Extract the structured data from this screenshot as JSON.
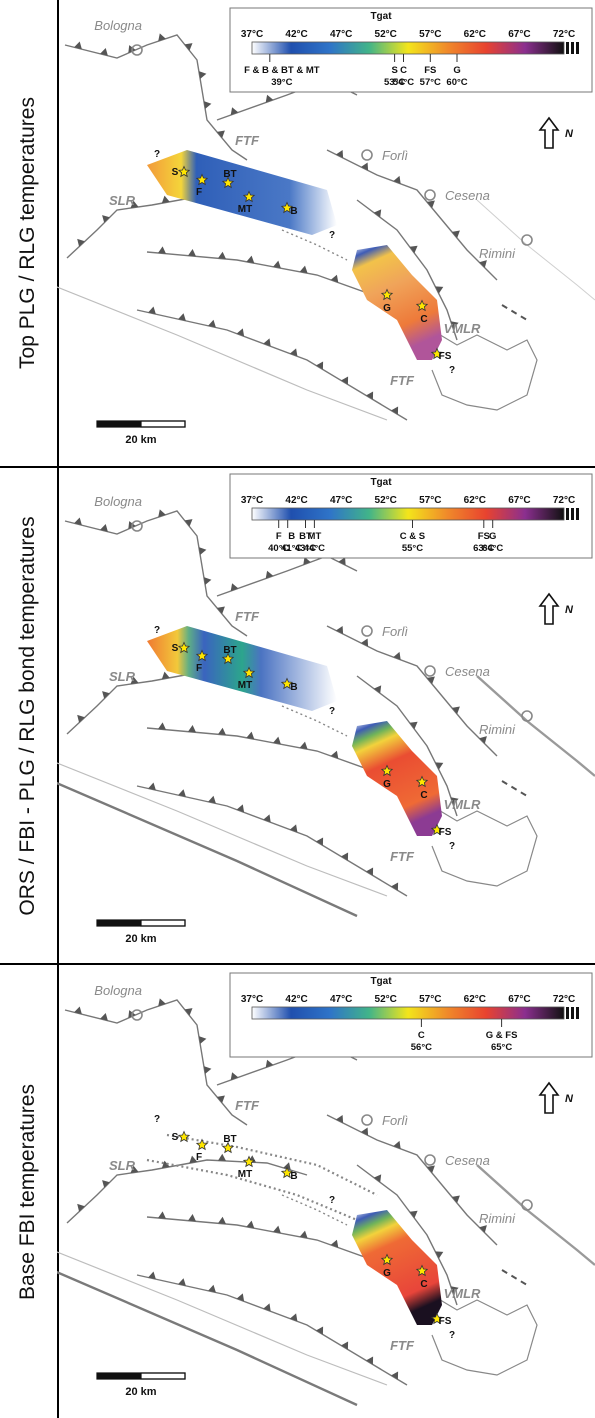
{
  "figure": {
    "panels": [
      {
        "id": "p1",
        "side_label": "Top PLG / RLG temperatures",
        "mode": "full",
        "legend_entries": [
          {
            "label": "F & B & BT & MT",
            "temp": "39°C",
            "value": 39
          },
          {
            "label": "S",
            "temp": "53°C",
            "value": 53
          },
          {
            "label": "C",
            "temp": "54°C",
            "value": 54
          },
          {
            "label": "FS",
            "temp": "57°C",
            "value": 57
          },
          {
            "label": "G",
            "temp": "60°C",
            "value": 60
          }
        ]
      },
      {
        "id": "p2",
        "side_label": "ORS / FBI - PLG / RLG bond temperatures",
        "mode": "full",
        "legend_entries": [
          {
            "label": "F",
            "temp": "40°C",
            "value": 40
          },
          {
            "label": "B",
            "temp": "41°C",
            "value": 41
          },
          {
            "label": "BT",
            "temp": "43°C",
            "value": 43
          },
          {
            "label": "MT",
            "temp": "44°C",
            "value": 44
          },
          {
            "label": "C & S",
            "temp": "55°C",
            "value": 55
          },
          {
            "label": "FS",
            "temp": "63°C",
            "value": 63
          },
          {
            "label": "G",
            "temp": "64°C",
            "value": 64
          }
        ]
      },
      {
        "id": "p3",
        "side_label": "Base FBI temperatures",
        "mode": "partial",
        "legend_entries": [
          {
            "label": "C",
            "temp": "56°C",
            "value": 56
          },
          {
            "label": "G & FS",
            "temp": "65°C",
            "value": 65
          }
        ]
      }
    ],
    "colorbar": {
      "title": "Tgat",
      "ticks": [
        "37°C",
        "42°C",
        "47°C",
        "52°C",
        "57°C",
        "62°C",
        "67°C",
        "72°C"
      ],
      "tick_values": [
        37,
        42,
        47,
        52,
        57,
        62,
        67,
        72
      ],
      "min": 37,
      "max": 72,
      "stops": [
        "#ffffff",
        "#1f4fae",
        "#2f74c8",
        "#41b489",
        "#f3e51b",
        "#f08a2a",
        "#e8432f",
        "#8b2f8f",
        "#111111"
      ]
    },
    "places": {
      "bologna": "Bologna",
      "forli": "Forlì",
      "cesena": "Cesena",
      "rimini": "Rimini"
    },
    "structures": {
      "ftf": "FTF",
      "slr": "SLR",
      "vmlr": "VMLR"
    },
    "sites": [
      "S",
      "F",
      "BT",
      "MT",
      "B",
      "G",
      "C",
      "FS"
    ],
    "north_label": "N",
    "scale_label": "20 km",
    "unknown_mark": "?"
  }
}
